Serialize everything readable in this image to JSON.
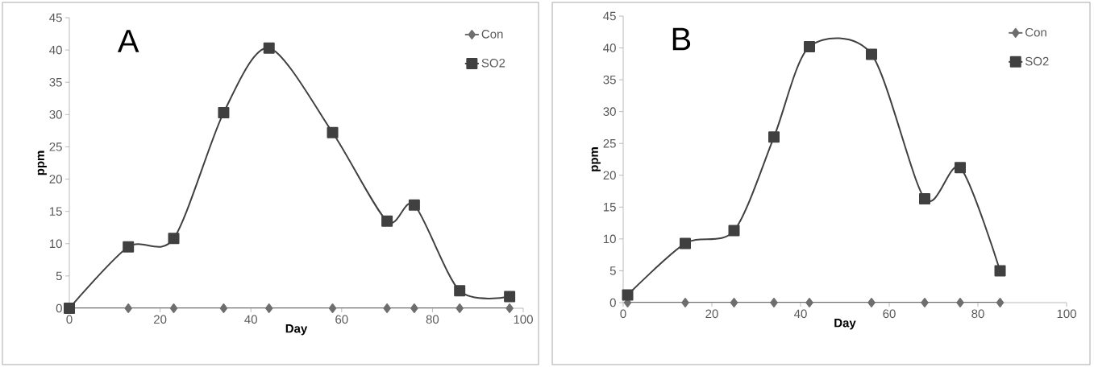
{
  "chart_data": [
    {
      "type": "line",
      "x": [
        0,
        13,
        23,
        34,
        44,
        58,
        70,
        76,
        86,
        97
      ],
      "xlabel": "Day",
      "ylabel": "ppm",
      "annotations": [
        "A"
      ],
      "series": [
        {
          "name": "Con",
          "color": "#6e6e6e",
          "marker": "diamond",
          "values": [
            0,
            0,
            0,
            0,
            0,
            0,
            0,
            0,
            0,
            0
          ]
        },
        {
          "name": "SO2",
          "color": "#404040",
          "marker": "square",
          "values": [
            0,
            9.5,
            10.8,
            30.3,
            40.3,
            27.2,
            13.5,
            16,
            2.7,
            1.8
          ]
        }
      ],
      "xlim": [
        0,
        100
      ],
      "ylim": [
        0,
        45
      ],
      "xticks": [
        0,
        20,
        40,
        60,
        80,
        100
      ],
      "yticks": [
        0,
        5,
        10,
        15,
        20,
        25,
        30,
        35,
        40,
        45
      ],
      "legend": "top right",
      "grid": false
    },
    {
      "type": "line",
      "x": [
        1,
        14,
        25,
        34,
        42,
        56,
        68,
        76,
        85
      ],
      "xlabel": "Day",
      "ylabel": "ppm",
      "annotations": [
        "B"
      ],
      "series": [
        {
          "name": "Con",
          "color": "#6e6e6e",
          "marker": "diamond",
          "values": [
            0,
            0,
            0,
            0,
            0,
            0,
            0,
            0,
            0
          ]
        },
        {
          "name": "SO2",
          "color": "#404040",
          "marker": "square",
          "values": [
            1.2,
            9.3,
            11.3,
            26,
            40.2,
            39,
            16.3,
            21.2,
            5
          ]
        }
      ],
      "xlim": [
        0,
        100
      ],
      "ylim": [
        0,
        45
      ],
      "xticks": [
        0,
        20,
        40,
        60,
        80,
        100
      ],
      "yticks": [
        0,
        5,
        10,
        15,
        20,
        25,
        30,
        35,
        40,
        45
      ],
      "legend": "top right",
      "grid": false
    }
  ]
}
